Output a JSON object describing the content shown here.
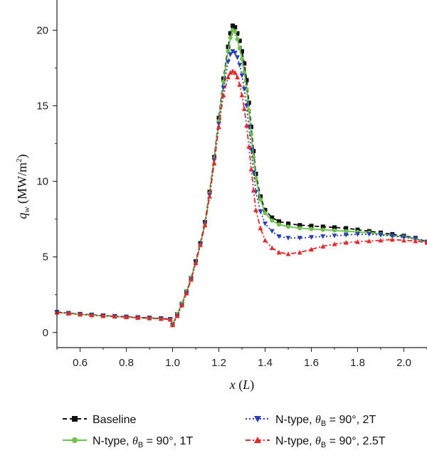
{
  "chart_data": {
    "type": "line",
    "xlabel": {
      "var": "x",
      "unit": "L"
    },
    "ylabel": {
      "var": "q",
      "sub": "w",
      "unit": "MW/m",
      "sup": "2"
    },
    "xlim": [
      0.5,
      2.1
    ],
    "ylim": [
      -1,
      22
    ],
    "xticks": [
      0.6,
      0.8,
      1.0,
      1.2,
      1.4,
      1.6,
      1.8,
      2.0
    ],
    "xtick_labels": [
      "0.6",
      "0.8",
      "1.0",
      "1.2",
      "1.4",
      "1.6",
      "1.8",
      "2.0"
    ],
    "yticks": [
      0,
      5,
      10,
      15,
      20
    ],
    "ytick_labels": [
      "0",
      "5",
      "10",
      "15",
      "20"
    ],
    "grid": false,
    "legend_position": "bottom",
    "series": [
      {
        "name": "Baseline",
        "color": "#111111",
        "dash": "6,4",
        "marker": "square",
        "x": [
          0.5,
          0.55,
          0.6,
          0.65,
          0.7,
          0.75,
          0.8,
          0.85,
          0.9,
          0.95,
          0.99,
          1.0,
          1.02,
          1.04,
          1.06,
          1.08,
          1.1,
          1.12,
          1.14,
          1.16,
          1.18,
          1.2,
          1.22,
          1.24,
          1.25,
          1.26,
          1.27,
          1.28,
          1.29,
          1.3,
          1.31,
          1.32,
          1.33,
          1.34,
          1.35,
          1.36,
          1.38,
          1.4,
          1.43,
          1.46,
          1.5,
          1.55,
          1.6,
          1.65,
          1.7,
          1.75,
          1.8,
          1.85,
          1.9,
          1.95,
          2.0,
          2.05,
          2.1
        ],
        "y": [
          1.35,
          1.28,
          1.22,
          1.17,
          1.12,
          1.08,
          1.04,
          1.0,
          0.97,
          0.93,
          0.88,
          0.5,
          1.2,
          1.9,
          2.7,
          3.6,
          4.7,
          5.9,
          7.3,
          9.3,
          11.6,
          14.2,
          16.8,
          18.9,
          19.8,
          20.3,
          20.2,
          19.8,
          19.3,
          18.6,
          17.8,
          16.7,
          15.2,
          13.6,
          12.0,
          10.5,
          9.0,
          8.1,
          7.6,
          7.35,
          7.2,
          7.1,
          7.05,
          7.0,
          6.95,
          6.9,
          6.8,
          6.7,
          6.6,
          6.5,
          6.4,
          6.25,
          6.0
        ]
      },
      {
        "name": "N-type, θB = 90°, 1T",
        "name_parts": {
          "prefix": "N-type, ",
          "theta": "θ",
          "sub": "B",
          "suffix": " = 90°, 1T"
        },
        "color": "#6cc24a",
        "dash": "",
        "marker": "circle",
        "x": [
          0.5,
          0.55,
          0.6,
          0.65,
          0.7,
          0.75,
          0.8,
          0.85,
          0.9,
          0.95,
          0.99,
          1.0,
          1.02,
          1.04,
          1.06,
          1.08,
          1.1,
          1.12,
          1.14,
          1.16,
          1.18,
          1.2,
          1.22,
          1.24,
          1.25,
          1.26,
          1.27,
          1.28,
          1.29,
          1.3,
          1.31,
          1.32,
          1.33,
          1.34,
          1.35,
          1.36,
          1.38,
          1.4,
          1.43,
          1.46,
          1.5,
          1.55,
          1.6,
          1.65,
          1.7,
          1.75,
          1.8,
          1.85,
          1.9,
          1.95,
          2.0,
          2.05,
          2.1
        ],
        "y": [
          1.33,
          1.26,
          1.2,
          1.15,
          1.1,
          1.06,
          1.02,
          0.98,
          0.95,
          0.91,
          0.86,
          0.55,
          1.2,
          1.9,
          2.7,
          3.6,
          4.6,
          5.8,
          7.2,
          9.2,
          11.5,
          14.0,
          16.6,
          18.6,
          19.5,
          20.0,
          19.9,
          19.4,
          18.8,
          18.1,
          17.2,
          16.1,
          14.7,
          13.1,
          11.6,
          10.2,
          8.8,
          7.9,
          7.4,
          7.15,
          7.0,
          6.9,
          6.85,
          6.8,
          6.75,
          6.7,
          6.65,
          6.6,
          6.5,
          6.4,
          6.35,
          6.2,
          5.95
        ]
      },
      {
        "name": "N-type, θB = 90°, 2T",
        "name_parts": {
          "prefix": "N-type, ",
          "theta": "θ",
          "sub": "B",
          "suffix": " = 90°, 2T"
        },
        "color": "#2a3fb8",
        "dash": "2,3",
        "marker": "triangle-down",
        "x": [
          0.5,
          0.55,
          0.6,
          0.65,
          0.7,
          0.75,
          0.8,
          0.85,
          0.9,
          0.95,
          0.99,
          1.0,
          1.02,
          1.04,
          1.06,
          1.08,
          1.1,
          1.12,
          1.14,
          1.16,
          1.18,
          1.2,
          1.22,
          1.24,
          1.25,
          1.26,
          1.27,
          1.28,
          1.29,
          1.3,
          1.31,
          1.32,
          1.33,
          1.34,
          1.35,
          1.36,
          1.38,
          1.4,
          1.43,
          1.46,
          1.5,
          1.55,
          1.6,
          1.65,
          1.7,
          1.75,
          1.8,
          1.85,
          1.9,
          1.95,
          2.0,
          2.05,
          2.1
        ],
        "y": [
          1.33,
          1.26,
          1.2,
          1.15,
          1.1,
          1.06,
          1.02,
          0.98,
          0.95,
          0.91,
          0.86,
          0.5,
          1.1,
          1.8,
          2.6,
          3.5,
          4.6,
          5.8,
          7.2,
          9.1,
          11.4,
          13.8,
          16.2,
          17.9,
          18.4,
          18.6,
          18.5,
          18.2,
          17.7,
          17.0,
          16.1,
          15.0,
          13.6,
          12.1,
          10.6,
          9.3,
          8.0,
          7.2,
          6.7,
          6.35,
          6.25,
          6.25,
          6.3,
          6.35,
          6.4,
          6.45,
          6.5,
          6.5,
          6.45,
          6.4,
          6.3,
          6.2,
          6.0
        ]
      },
      {
        "name": "N-type, θB = 90°, 2.5T",
        "name_parts": {
          "prefix": "N-type, ",
          "theta": "θ",
          "sub": "B",
          "suffix": " = 90°, 2.5T"
        },
        "color": "#e52a2a",
        "dash": "7,3,2,3",
        "marker": "triangle-up",
        "x": [
          0.5,
          0.55,
          0.6,
          0.65,
          0.7,
          0.75,
          0.8,
          0.85,
          0.9,
          0.95,
          0.99,
          1.0,
          1.02,
          1.04,
          1.06,
          1.08,
          1.1,
          1.12,
          1.14,
          1.16,
          1.18,
          1.2,
          1.22,
          1.24,
          1.25,
          1.26,
          1.27,
          1.28,
          1.29,
          1.3,
          1.31,
          1.32,
          1.33,
          1.34,
          1.35,
          1.36,
          1.38,
          1.4,
          1.43,
          1.46,
          1.5,
          1.55,
          1.6,
          1.65,
          1.7,
          1.75,
          1.8,
          1.85,
          1.9,
          1.95,
          2.0,
          2.05,
          2.1
        ],
        "y": [
          1.33,
          1.26,
          1.2,
          1.15,
          1.1,
          1.06,
          1.02,
          0.98,
          0.95,
          0.91,
          0.86,
          0.5,
          1.1,
          1.8,
          2.6,
          3.5,
          4.6,
          5.8,
          7.1,
          9.0,
          11.2,
          13.6,
          15.7,
          16.9,
          17.2,
          17.3,
          17.2,
          16.9,
          16.4,
          15.7,
          14.8,
          13.7,
          12.3,
          10.8,
          9.4,
          8.1,
          6.9,
          6.1,
          5.6,
          5.3,
          5.2,
          5.3,
          5.5,
          5.7,
          5.85,
          5.95,
          6.0,
          6.05,
          6.1,
          6.15,
          6.1,
          6.05,
          5.95
        ]
      }
    ]
  }
}
